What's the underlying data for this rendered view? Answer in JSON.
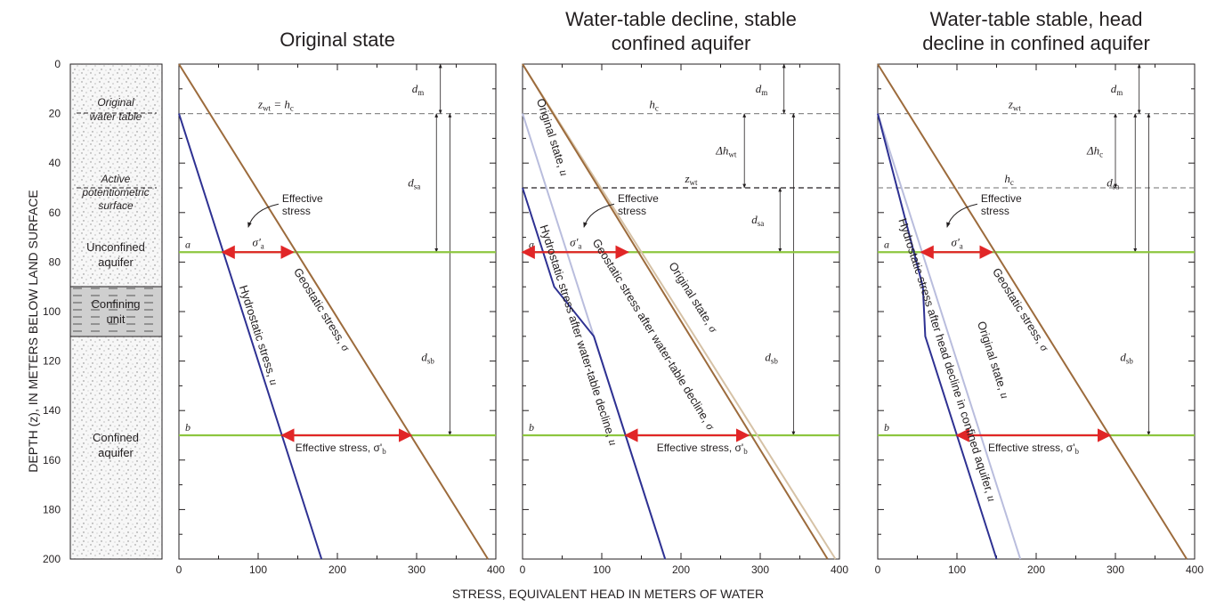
{
  "colors": {
    "geostatic": "#9c6b3c",
    "geostatic_original": "#d6c2a6",
    "hydrostatic": "#2e3192",
    "hydrostatic_original": "#b9bddd",
    "horizon": "#8dc63f",
    "arrow": "#e12627",
    "dashed": "#8c8c8c",
    "dashed_dark": "#231f20",
    "column_sand": "#f4f4f4",
    "column_clay": "#cfcfcf"
  },
  "y_axis": {
    "label": "DEPTH (z), IN METERS BELOW LAND SURFACE",
    "ticks": [
      "0",
      "20",
      "40",
      "60",
      "80",
      "100",
      "120",
      "140",
      "160",
      "180",
      "200"
    ]
  },
  "x_axis": {
    "label": "STRESS, EQUIVALENT HEAD IN METERS OF WATER"
  },
  "column": {
    "original_water_table": [
      "Original",
      "water table"
    ],
    "active_surface": [
      "Active",
      "potentiometric",
      "surface"
    ],
    "unconfined": [
      "Unconfined",
      "aquifer"
    ],
    "confining": [
      "Confining",
      "unit"
    ],
    "confined": [
      "Confined",
      "aquifer"
    ]
  },
  "chart_data": [
    {
      "type": "line",
      "title": "Original state",
      "xlim": [
        0,
        400
      ],
      "ylim": [
        0,
        200
      ],
      "x_ticks": [
        "0",
        "100",
        "200",
        "300",
        "400"
      ],
      "series": [
        {
          "name": "Geostatic stress, σ",
          "role": "geostatic",
          "points": [
            [
              0,
              0
            ],
            [
              390,
              200
            ]
          ]
        },
        {
          "name": "Hydrostatic stress, u",
          "role": "hydrostatic",
          "points": [
            [
              0,
              20
            ],
            [
              180,
              200
            ]
          ]
        }
      ],
      "horizons": [
        {
          "label": "a",
          "depth": 76
        },
        {
          "label": "b",
          "depth": 150
        }
      ],
      "dashed_levels": [
        {
          "depth": 20,
          "label": "z_wt = h_c"
        }
      ],
      "effective_stress_a": {
        "label": "σ'a",
        "x0": 55,
        "x1": 144,
        "depth": 76
      },
      "effective_stress_b": {
        "label": "Effective stress, σ'b",
        "x0": 130,
        "x1": 293,
        "depth": 150
      },
      "dimension_labels": [
        {
          "label": "d_m",
          "from": 0,
          "to": 20,
          "x": 330
        },
        {
          "label": "d_sa",
          "from": 20,
          "to": 76,
          "x": 325
        },
        {
          "label": "d_sb",
          "from": 20,
          "to": 150,
          "x": 342
        }
      ],
      "annotation": [
        "Effective",
        "stress"
      ]
    },
    {
      "type": "line",
      "title": "Water-table decline, stable confined aquifer",
      "title_lines": [
        "Water-table decline, stable",
        "confined aquifer"
      ],
      "xlim": [
        0,
        400
      ],
      "ylim": [
        0,
        200
      ],
      "x_ticks": [
        "0",
        "100",
        "200",
        "300",
        "400"
      ],
      "series": [
        {
          "name": "Original state, σ",
          "role": "geostatic_original",
          "points": [
            [
              0,
              0
            ],
            [
              395,
              200
            ]
          ]
        },
        {
          "name": "Geostatic stress after water-table decline, σ",
          "role": "geostatic",
          "points": [
            [
              0,
              0
            ],
            [
              385,
              200
            ]
          ]
        },
        {
          "name": "Original state, u",
          "role": "hydrostatic_original",
          "points": [
            [
              0,
              20
            ],
            [
              180,
              200
            ]
          ]
        },
        {
          "name": "Hydrostatic stress after water-table decline, u",
          "role": "hydrostatic",
          "points": [
            [
              0,
              50
            ],
            [
              40,
              90
            ],
            [
              90,
              110
            ],
            [
              180,
              200
            ]
          ]
        }
      ],
      "horizons": [
        {
          "label": "a",
          "depth": 76
        },
        {
          "label": "b",
          "depth": 150
        }
      ],
      "dashed_levels": [
        {
          "depth": 20,
          "label": "h_c"
        },
        {
          "depth": 50,
          "label": "z_wt"
        }
      ],
      "effective_stress_a": {
        "label": "σ'a",
        "x0": 0,
        "x1": 133,
        "depth": 76
      },
      "effective_stress_b": {
        "label": "Effective stress, σ'b",
        "x0": 130,
        "x1": 285,
        "depth": 150
      },
      "dimension_labels": [
        {
          "label": "d_m",
          "from": 0,
          "to": 20,
          "x": 330
        },
        {
          "label": "Δh_wt",
          "from": 20,
          "to": 50,
          "x": 280
        },
        {
          "label": "d_sa",
          "from": 50,
          "to": 76,
          "x": 325
        },
        {
          "label": "d_sb",
          "from": 20,
          "to": 150,
          "x": 342
        }
      ],
      "annotation": [
        "Effective",
        "stress"
      ]
    },
    {
      "type": "line",
      "title": "Water-table stable, head decline in confined aquifer",
      "title_lines": [
        "Water-table stable, head",
        "decline in confined aquifer"
      ],
      "xlim": [
        0,
        400
      ],
      "ylim": [
        0,
        200
      ],
      "x_ticks": [
        "0",
        "100",
        "200",
        "300",
        "400"
      ],
      "series": [
        {
          "name": "Geostatic stress, σ",
          "role": "geostatic",
          "points": [
            [
              0,
              0
            ],
            [
              390,
              200
            ]
          ]
        },
        {
          "name": "Original state, u",
          "role": "hydrostatic_original",
          "points": [
            [
              0,
              20
            ],
            [
              180,
              200
            ]
          ]
        },
        {
          "name": "Hydrostatic stress after head decline in confined aquifer, u",
          "role": "hydrostatic",
          "points": [
            [
              0,
              20
            ],
            [
              57,
              90
            ],
            [
              60,
              110
            ],
            [
              150,
              200
            ]
          ]
        }
      ],
      "horizons": [
        {
          "label": "a",
          "depth": 76
        },
        {
          "label": "b",
          "depth": 150
        }
      ],
      "dashed_levels": [
        {
          "depth": 20,
          "label": "z_wt"
        },
        {
          "depth": 50,
          "label": "h_c"
        }
      ],
      "effective_stress_a": {
        "label": "σ'a",
        "x0": 55,
        "x1": 144,
        "depth": 76
      },
      "effective_stress_b": {
        "label": "Effective stress, σ'b",
        "x0": 100,
        "x1": 293,
        "depth": 150
      },
      "dimension_labels": [
        {
          "label": "d_m",
          "from": 0,
          "to": 20,
          "x": 330
        },
        {
          "label": "Δh_c",
          "from": 20,
          "to": 50,
          "x": 300
        },
        {
          "label": "d_sa",
          "from": 20,
          "to": 76,
          "x": 325
        },
        {
          "label": "d_sb",
          "from": 20,
          "to": 150,
          "x": 342
        }
      ],
      "annotation": [
        "Effective",
        "stress"
      ]
    }
  ]
}
